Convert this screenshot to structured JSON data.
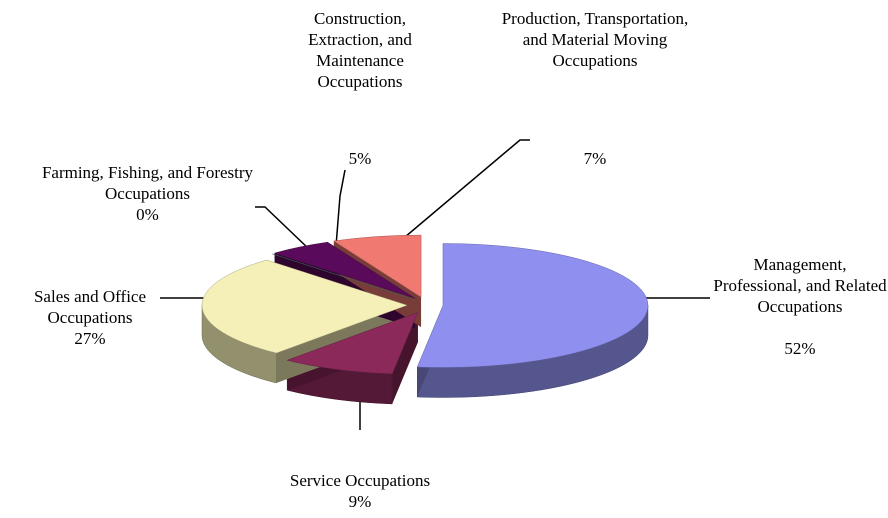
{
  "chart_data": {
    "type": "pie",
    "categories": [
      "Management, Professional, and Related Occupations",
      "Service Occupations",
      "Sales and Office Occupations",
      "Farming, Fishing, and Forestry Occupations",
      "Construction, Extraction, and Maintenance Occupations",
      "Production, Transportation, and Material Moving Occupations"
    ],
    "values": [
      52,
      9,
      27,
      0,
      5,
      7
    ],
    "value_labels": [
      "52%",
      "9%",
      "27%",
      "0%",
      "5%",
      "7%"
    ],
    "colors": [
      "#8f8fef",
      "#8b2a5a",
      "#f5f0b8",
      "#5f8080",
      "#5a0a5a",
      "#f07a72"
    ]
  }
}
